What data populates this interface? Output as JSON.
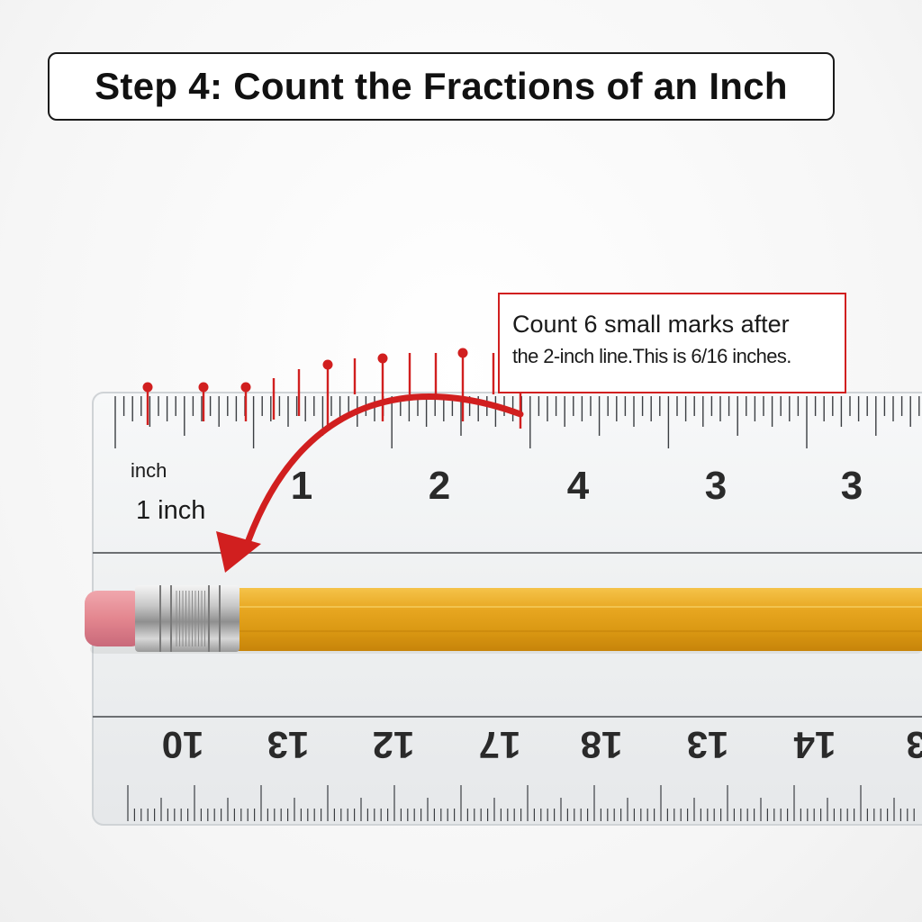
{
  "title": "Step 4: Count the Fractions of an Inch",
  "callout": {
    "line1": "Count 6 small marks after",
    "line2": "the 2-inch line.This is 6/16 inches."
  },
  "ruler": {
    "top_unit_label": "inch",
    "top_numbers": [
      "1",
      "2",
      "4",
      "3",
      "3"
    ],
    "bottom_numbers": [
      "10",
      "13",
      "12",
      "17",
      "18",
      "13",
      "14",
      "3"
    ]
  },
  "arrow_label": "1 inch",
  "colors": {
    "accent": "#d11f1f",
    "pencil": "#e9a91e",
    "eraser": "#e48a93",
    "ruler": "#f1f2f3"
  }
}
